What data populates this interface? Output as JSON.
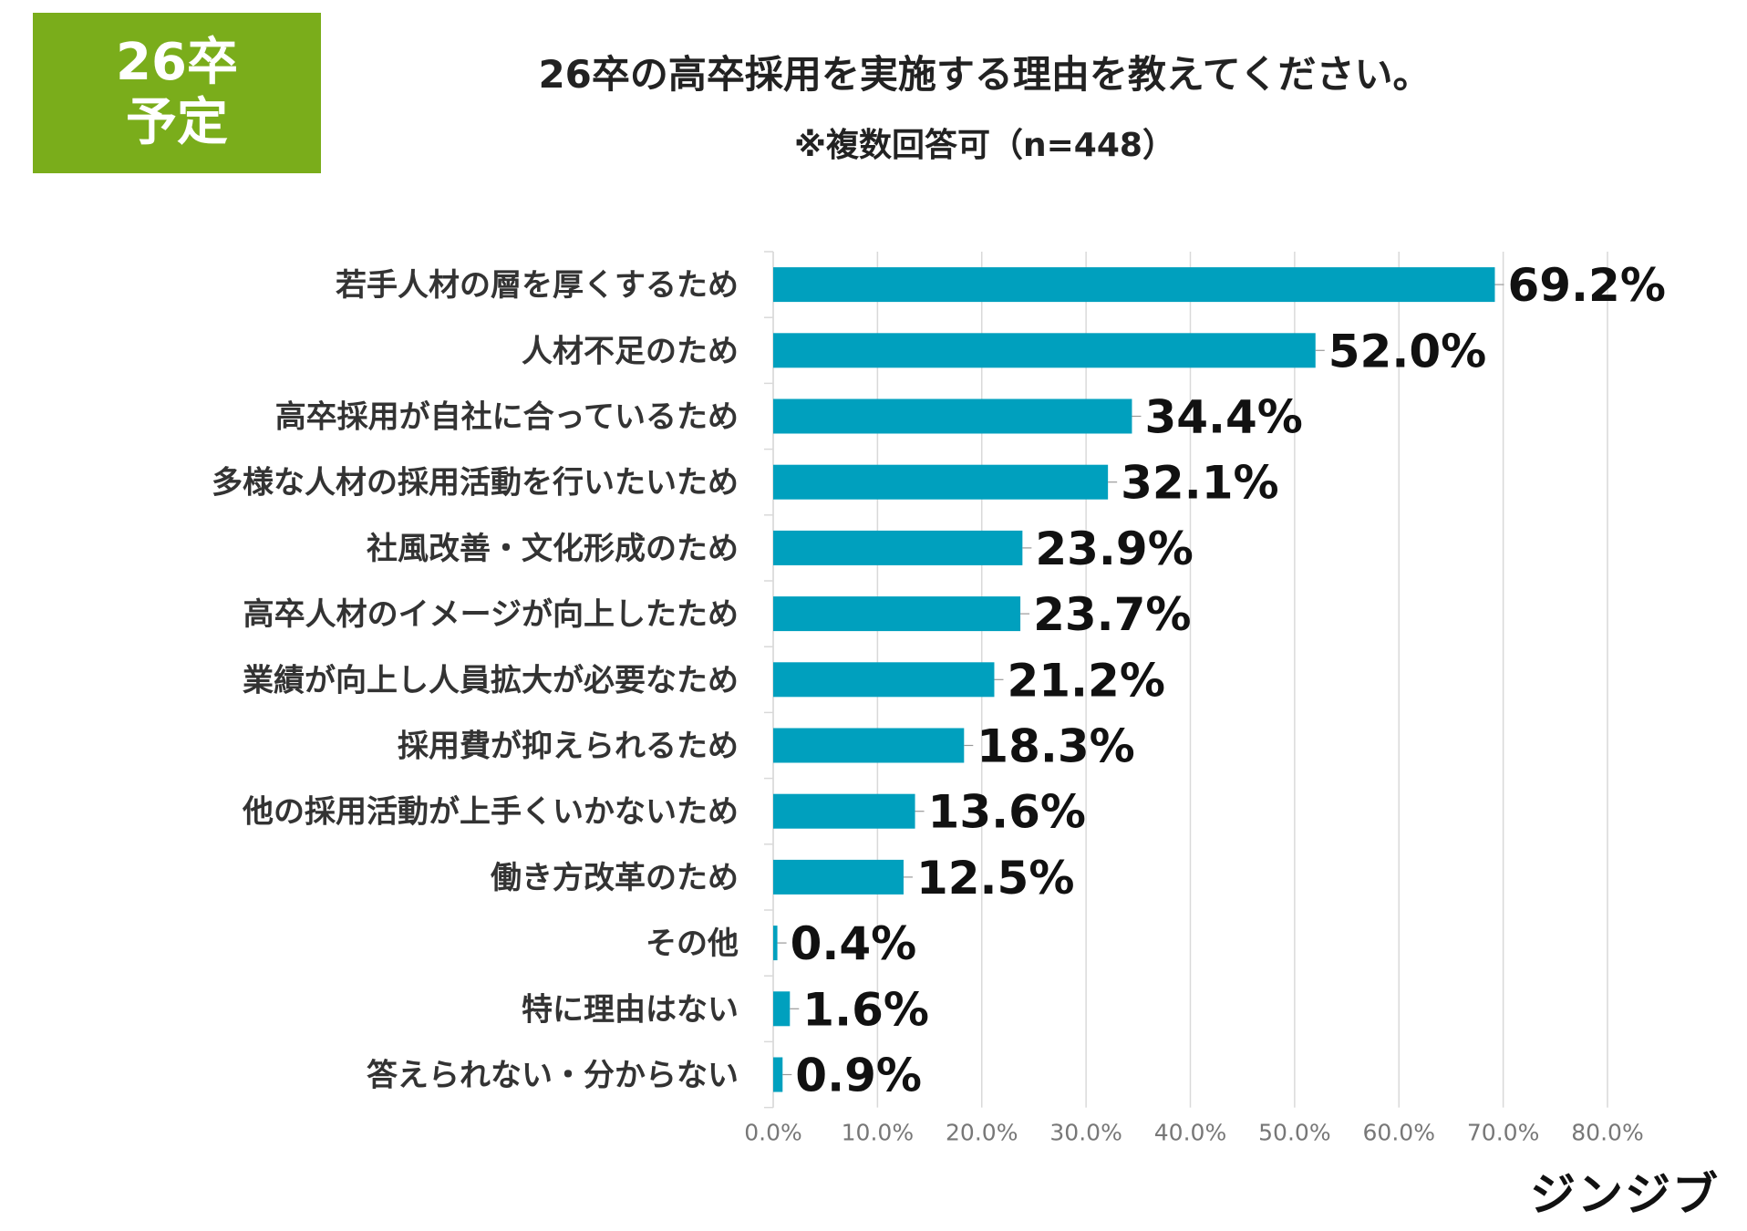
{
  "badge": {
    "line1": "26卒",
    "line2": "予定"
  },
  "brand": "ジンジブ",
  "colors": {
    "bar": "#00a0be",
    "badge": "#7aad1b",
    "grid": "#d9d9d9"
  },
  "chart_data": {
    "type": "bar",
    "orientation": "horizontal",
    "title": "26卒の高卒採用を実施する理由を教えてください。",
    "subtitle": "※複数回答可（n=448）",
    "categories": [
      "若手人材の層を厚くするため",
      "人材不足のため",
      "高卒採用が自社に合っているため",
      "多様な人材の採用活動を行いたいため",
      "社風改善・文化形成のため",
      "高卒人材のイメージが向上したため",
      "業績が向上し人員拡大が必要なため",
      "採用費が抑えられるため",
      "他の採用活動が上手くいかないため",
      "働き方改革のため",
      "その他",
      "特に理由はない",
      "答えられない・分からない"
    ],
    "values": [
      69.2,
      52.0,
      34.4,
      32.1,
      23.9,
      23.7,
      21.2,
      18.3,
      13.6,
      12.5,
      0.4,
      1.6,
      0.9
    ],
    "value_labels": [
      "69.2%",
      "52.0%",
      "34.4%",
      "32.1%",
      "23.9%",
      "23.7%",
      "21.2%",
      "18.3%",
      "13.6%",
      "12.5%",
      "0.4%",
      "1.6%",
      "0.9%"
    ],
    "x_ticks": [
      0,
      10,
      20,
      30,
      40,
      50,
      60,
      70,
      80
    ],
    "x_tick_labels": [
      "0.0%",
      "10.0%",
      "20.0%",
      "30.0%",
      "40.0%",
      "50.0%",
      "60.0%",
      "70.0%",
      "80.0%"
    ],
    "xlim": [
      0,
      80
    ],
    "xlabel": "",
    "ylabel": "",
    "grid": true,
    "legend": "none"
  }
}
